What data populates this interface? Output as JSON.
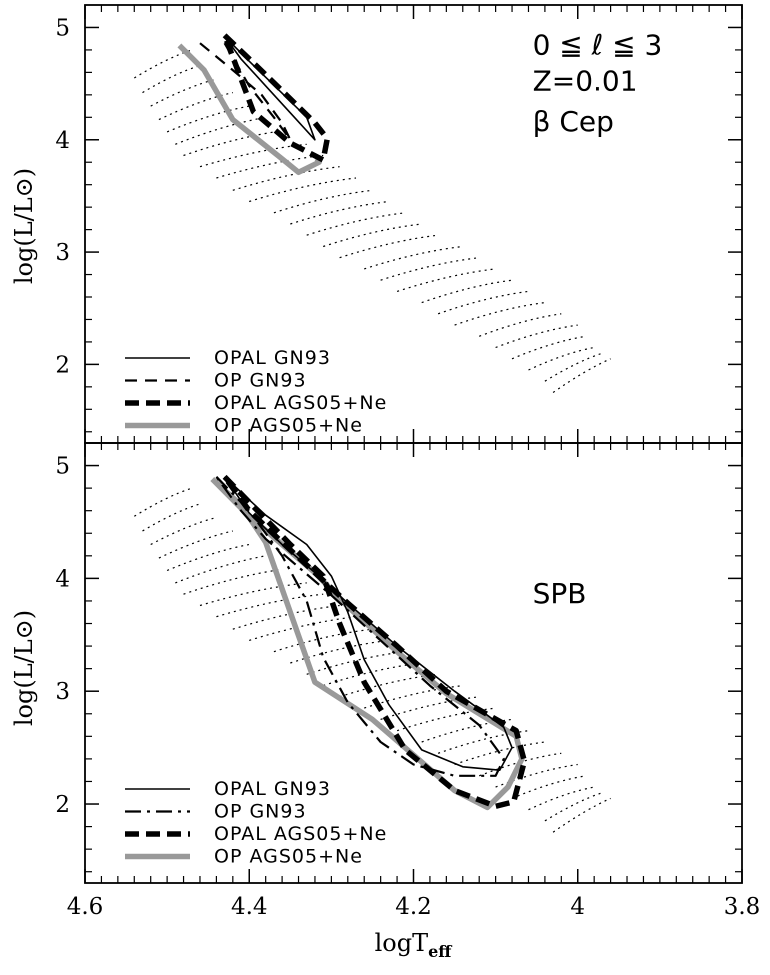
{
  "chart_data": {
    "type": "line",
    "x_axis": {
      "label_main": "logT",
      "label_sub": "eff",
      "range": [
        4.6,
        3.8
      ],
      "ticks": [
        4.6,
        4.4,
        4.2,
        4.0,
        3.8
      ],
      "tick_labels": [
        "4.6",
        "4.4",
        "4.2",
        "4",
        "3.8"
      ]
    },
    "y_axis": {
      "label": "log(L/L⊙)",
      "range": [
        1.3,
        5.2
      ],
      "ticks": [
        2,
        3,
        4,
        5
      ],
      "tick_labels": [
        "2",
        "3",
        "4",
        "5"
      ]
    },
    "grid": false,
    "styles": {
      "opal_gn93": {
        "color": "#000000",
        "width": 1.6,
        "dash": ""
      },
      "op_gn93_top": {
        "color": "#000000",
        "width": 2.2,
        "dash": "12 8"
      },
      "op_gn93_bottom": {
        "color": "#000000",
        "width": 2.2,
        "dash": "16 6 3 6"
      },
      "opal_ags05": {
        "color": "#000000",
        "width": 5.5,
        "dash": "14 7"
      },
      "op_ags05": {
        "color": "#999999",
        "width": 5.5,
        "dash": ""
      },
      "track": {
        "color": "#000000",
        "width": 1.2,
        "dash": "2 4"
      }
    },
    "track_segments": [
      [
        4.54,
        4.55,
        4.47,
        4.8
      ],
      [
        4.53,
        4.42,
        4.46,
        4.66
      ],
      [
        4.52,
        4.3,
        4.44,
        4.54
      ],
      [
        4.51,
        4.18,
        4.42,
        4.42
      ],
      [
        4.5,
        4.07,
        4.4,
        4.3
      ],
      [
        4.49,
        3.96,
        4.38,
        4.2
      ],
      [
        4.48,
        3.86,
        4.36,
        4.08
      ],
      [
        4.46,
        3.76,
        4.33,
        3.96
      ],
      [
        4.44,
        3.66,
        4.31,
        3.86
      ],
      [
        4.42,
        3.55,
        4.29,
        3.76
      ],
      [
        4.4,
        3.45,
        4.27,
        3.66
      ],
      [
        4.37,
        3.35,
        4.25,
        3.55
      ],
      [
        4.35,
        3.25,
        4.23,
        3.45
      ],
      [
        4.33,
        3.15,
        4.21,
        3.35
      ],
      [
        4.31,
        3.05,
        4.19,
        3.25
      ],
      [
        4.29,
        2.95,
        4.17,
        3.15
      ],
      [
        4.26,
        2.85,
        4.14,
        3.05
      ],
      [
        4.24,
        2.75,
        4.12,
        2.95
      ],
      [
        4.22,
        2.65,
        4.1,
        2.85
      ],
      [
        4.19,
        2.55,
        4.08,
        2.75
      ],
      [
        4.17,
        2.45,
        4.06,
        2.65
      ],
      [
        4.15,
        2.35,
        4.04,
        2.55
      ],
      [
        4.12,
        2.25,
        4.02,
        2.45
      ],
      [
        4.1,
        2.15,
        4.0,
        2.35
      ],
      [
        4.08,
        2.05,
        3.99,
        2.25
      ],
      [
        4.06,
        1.95,
        3.98,
        2.15
      ],
      [
        4.04,
        1.85,
        3.97,
        2.1
      ],
      [
        4.03,
        1.75,
        3.96,
        2.05
      ]
    ],
    "panels": [
      {
        "id": "beta-cep",
        "annotations": [
          {
            "text": "0  ≦  ℓ ≦  3",
            "x": 4.055,
            "y": 4.76
          },
          {
            "text": "Z=0.01",
            "x": 4.055,
            "y": 4.44
          },
          {
            "text": "β  Cep",
            "x": 4.055,
            "y": 4.08
          }
        ],
        "legend": [
          {
            "label": "OPAL GN93",
            "style": "opal_gn93"
          },
          {
            "label": "OP GN93",
            "style": "op_gn93_top"
          },
          {
            "label": "OPAL AGS05+Ne",
            "style": "opal_ags05"
          },
          {
            "label": "OP AGS05+Ne",
            "style": "op_ags05"
          }
        ],
        "series": [
          {
            "name": "OP AGS05+Ne",
            "style": "op_ags05",
            "x": [
              4.485,
              4.455,
              4.42,
              4.36,
              4.34,
              4.315,
              4.32
            ],
            "y": [
              4.84,
              4.62,
              4.18,
              3.83,
              3.71,
              3.8,
              3.8
            ]
          },
          {
            "name": "OPAL AGS05+Ne",
            "style": "opal_ags05",
            "x": [
              4.43,
              4.39,
              4.355,
              4.32,
              4.305,
              4.31,
              4.35,
              4.395,
              4.43
            ],
            "y": [
              4.93,
              4.65,
              4.4,
              4.15,
              4.01,
              3.82,
              3.97,
              4.25,
              4.93
            ]
          },
          {
            "name": "OPAL GN93",
            "style": "opal_gn93",
            "x": [
              4.43,
              4.4,
              4.365,
              4.33,
              4.32,
              4.345,
              4.38,
              4.41,
              4.43
            ],
            "y": [
              4.92,
              4.7,
              4.45,
              4.2,
              4.0,
              4.2,
              4.48,
              4.72,
              4.92
            ]
          },
          {
            "name": "OP GN93",
            "style": "op_gn93_top",
            "x": [
              4.46,
              4.42,
              4.385,
              4.36,
              4.35,
              4.37,
              4.4,
              4.43
            ],
            "y": [
              4.86,
              4.62,
              4.4,
              4.15,
              4.0,
              4.2,
              4.48,
              4.86
            ]
          }
        ]
      },
      {
        "id": "spb",
        "annotations": [
          {
            "text": "SPB",
            "x": 4.055,
            "y": 3.78
          }
        ],
        "legend": [
          {
            "label": "OPAL GN93",
            "style": "opal_gn93"
          },
          {
            "label": "OP GN93",
            "style": "op_gn93_bottom"
          },
          {
            "label": "OPAL AGS05+Ne",
            "style": "opal_ags05"
          },
          {
            "label": "OP AGS05+Ne",
            "style": "op_ags05"
          }
        ],
        "series": [
          {
            "name": "OP AGS05+Ne",
            "style": "op_ags05",
            "x": [
              4.445,
              4.41,
              4.38,
              4.32,
              4.25,
              4.15,
              4.11,
              4.085,
              4.068,
              4.075,
              4.16,
              4.22,
              4.28,
              4.32,
              4.36,
              4.4,
              4.445
            ],
            "y": [
              4.88,
              4.65,
              4.32,
              3.08,
              2.75,
              2.12,
              1.97,
              2.15,
              2.4,
              2.6,
              2.98,
              3.35,
              3.75,
              4.05,
              4.3,
              4.55,
              4.88
            ]
          },
          {
            "name": "OPAL AGS05+Ne",
            "style": "opal_ags05",
            "x": [
              4.43,
              4.39,
              4.35,
              4.31,
              4.29,
              4.26,
              4.21,
              4.15,
              4.1,
              4.078,
              4.065,
              4.075,
              4.16,
              4.22,
              4.28,
              4.32,
              4.36,
              4.4,
              4.43
            ],
            "y": [
              4.9,
              4.6,
              4.3,
              4.02,
              3.6,
              3.08,
              2.48,
              2.12,
              1.98,
              2.02,
              2.38,
              2.65,
              3.0,
              3.4,
              3.78,
              4.05,
              4.32,
              4.6,
              4.9
            ]
          },
          {
            "name": "OPAL GN93",
            "style": "opal_gn93",
            "x": [
              4.43,
              4.38,
              4.33,
              4.3,
              4.28,
              4.26,
              4.23,
              4.19,
              4.14,
              4.095,
              4.08,
              4.09,
              4.15,
              4.22,
              4.28,
              4.32,
              4.36,
              4.4,
              4.43
            ],
            "y": [
              4.9,
              4.56,
              4.3,
              4.02,
              3.7,
              3.28,
              2.88,
              2.48,
              2.33,
              2.3,
              2.5,
              2.68,
              3.0,
              3.4,
              3.78,
              4.05,
              4.3,
              4.58,
              4.9
            ]
          },
          {
            "name": "OP GN93",
            "style": "op_gn93_bottom",
            "x": [
              4.44,
              4.4,
              4.36,
              4.33,
              4.31,
              4.28,
              4.24,
              4.2,
              4.15,
              4.1,
              4.09,
              4.12,
              4.18,
              4.24,
              4.3,
              4.34,
              4.38,
              4.41,
              4.44
            ],
            "y": [
              4.9,
              4.6,
              4.2,
              3.8,
              3.3,
              2.9,
              2.55,
              2.35,
              2.25,
              2.25,
              2.4,
              2.7,
              3.05,
              3.45,
              3.85,
              4.1,
              4.35,
              4.6,
              4.9
            ]
          }
        ]
      }
    ]
  }
}
